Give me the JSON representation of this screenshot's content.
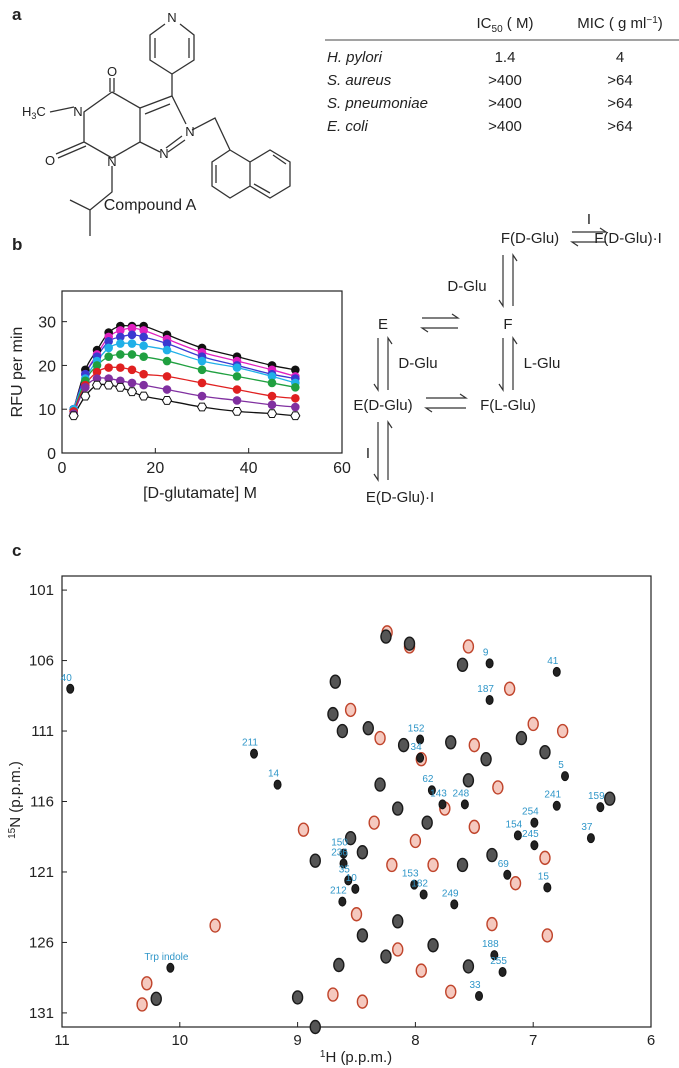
{
  "panel_labels": [
    "a",
    "b",
    "c"
  ],
  "compound": {
    "name": "Compound A",
    "atoms": [
      "N",
      "O",
      "N",
      "O",
      "N",
      "N",
      "N"
    ],
    "methyl": {
      "main": "H",
      "sub": "3",
      "rest": "C"
    }
  },
  "table": {
    "headers": [
      {
        "main": "IC",
        "sub": "50",
        "rest": " ( M)"
      },
      {
        "main": "MIC ( g ml",
        "sup": "−1",
        "rest": ")"
      }
    ],
    "rows": [
      [
        "H. pylori",
        "1.4",
        "4"
      ],
      [
        "S. aureus",
        ">400",
        ">64"
      ],
      [
        "S. pneumoniae",
        ">400",
        ">64"
      ],
      [
        "E. coli",
        ">400",
        ">64"
      ]
    ]
  },
  "kinetics": {
    "type": "scatter",
    "x_label": "[D-glutamate]   M",
    "y_label": "RFU per min",
    "x": [
      2.5,
      5,
      7.5,
      10,
      12.5,
      15,
      17.5,
      22.5,
      30,
      37.5,
      45,
      50
    ],
    "xlim": [
      0,
      60
    ],
    "xticks": [
      0,
      20,
      40,
      60
    ],
    "ylim": [
      0,
      37
    ],
    "yticks": [
      0,
      10,
      20,
      30
    ],
    "series": [
      {
        "color": "#111111",
        "values": [
          10,
          19,
          23.5,
          27.5,
          29,
          29,
          29,
          27,
          24,
          22,
          20,
          19
        ]
      },
      {
        "color": "#e020c0",
        "values": [
          10,
          18,
          22.5,
          26.5,
          28,
          28.5,
          28,
          26,
          23,
          21,
          19,
          17.5
        ]
      },
      {
        "color": "#3a3ad0",
        "values": [
          10,
          18,
          22,
          25.5,
          26.5,
          27,
          26.5,
          25,
          22,
          20,
          18,
          17
        ]
      },
      {
        "color": "#20b0e8",
        "values": [
          10,
          17,
          21,
          24,
          25,
          25,
          24.5,
          23.5,
          21,
          19.5,
          17.5,
          16
        ]
      },
      {
        "color": "#20a040",
        "values": [
          9.5,
          16.5,
          20,
          22,
          22.5,
          22.5,
          22,
          21,
          19,
          17.5,
          16,
          15
        ]
      },
      {
        "color": "#e02020",
        "values": [
          9.5,
          15.5,
          18.5,
          19.5,
          19.5,
          19,
          18,
          17.5,
          16,
          14.5,
          13,
          12.5
        ]
      },
      {
        "color": "#8030a0",
        "values": [
          9,
          15,
          17,
          17,
          16.5,
          16,
          15.5,
          14.5,
          13,
          12,
          11,
          10.5
        ]
      },
      {
        "color": "#ffffff",
        "line_color": "#111111",
        "marker": "hexagon",
        "values": [
          8.5,
          13,
          15.5,
          15.5,
          15,
          14,
          13,
          12,
          10.5,
          9.5,
          9,
          8.5
        ]
      }
    ]
  },
  "scheme": {
    "nodes": [
      "F(D-Glu)",
      "F(D-Glu)·I",
      "E",
      "F",
      "E(D-Glu)",
      "F(L-Glu)",
      "E(D-Glu)·I"
    ],
    "edge_labels": [
      "I",
      "D-Glu",
      "D-Glu",
      "L-Glu",
      "I"
    ]
  },
  "spectrum": {
    "type": "scatter",
    "x_label": {
      "sup": "1",
      "main": "H (p.p.m.)"
    },
    "y_label": {
      "sup": "15",
      "main": "N (p.p.m.)"
    },
    "xlim": [
      11,
      6
    ],
    "xticks": [
      11,
      10,
      9,
      8,
      7,
      6
    ],
    "ylim": [
      132,
      100
    ],
    "yticks": [
      101,
      106,
      111,
      116,
      121,
      126,
      131
    ],
    "labeled_peaks": {
      "labels": [
        "40",
        "211",
        "14",
        "9",
        "41",
        "187",
        "152",
        "34",
        "62",
        "143",
        "248",
        "5",
        "241",
        "159",
        "254",
        "37",
        "154",
        "245",
        "150",
        "236",
        "69",
        "35",
        "10",
        "212",
        "153",
        "182",
        "249",
        "15",
        "188",
        "255",
        "33",
        "Trp indole"
      ],
      "x": [
        10.93,
        9.37,
        9.17,
        7.37,
        6.8,
        7.37,
        7.96,
        7.96,
        7.86,
        7.77,
        7.58,
        6.73,
        6.8,
        6.43,
        6.99,
        6.51,
        7.13,
        6.99,
        8.61,
        8.61,
        7.22,
        8.57,
        8.51,
        8.62,
        8.01,
        7.93,
        7.67,
        6.88,
        7.33,
        7.26,
        7.46,
        10.08
      ],
      "y": [
        108.0,
        112.6,
        114.8,
        106.2,
        106.8,
        108.8,
        111.6,
        112.9,
        115.2,
        116.2,
        116.2,
        114.2,
        116.3,
        116.4,
        117.5,
        118.6,
        118.4,
        119.1,
        119.7,
        120.4,
        121.2,
        121.6,
        122.2,
        123.1,
        121.9,
        122.6,
        123.3,
        122.1,
        126.9,
        128.1,
        129.8,
        127.8
      ]
    },
    "black_peaks": {
      "color": "#1a1a1a",
      "x": [
        8.25,
        8.05,
        7.6,
        8.68,
        8.7,
        8.62,
        8.4,
        8.1,
        7.7,
        7.4,
        7.1,
        6.9,
        7.55,
        8.3,
        8.15,
        7.9,
        8.55,
        8.45,
        7.35,
        7.6,
        8.85,
        8.15,
        8.45,
        8.25,
        7.85,
        7.55,
        8.65,
        9.0,
        10.2,
        8.85,
        6.35
      ],
      "y": [
        104.3,
        104.8,
        106.3,
        107.5,
        109.8,
        111.0,
        110.8,
        112.0,
        111.8,
        113.0,
        111.5,
        112.5,
        114.5,
        114.8,
        116.5,
        117.5,
        118.6,
        119.6,
        119.8,
        120.5,
        120.2,
        124.5,
        125.5,
        127.0,
        126.2,
        127.7,
        127.6,
        129.9,
        130.0,
        132.0,
        115.8
      ]
    },
    "red_peaks": {
      "color": "#c0452c",
      "x": [
        8.24,
        8.05,
        7.55,
        7.2,
        8.55,
        8.3,
        7.95,
        7.5,
        7.0,
        6.75,
        7.3,
        7.75,
        8.0,
        8.35,
        8.2,
        7.85,
        7.5,
        7.15,
        6.9,
        8.95,
        9.7,
        8.5,
        8.15,
        7.95,
        7.35,
        6.88,
        10.32,
        10.28,
        8.7,
        8.45,
        7.7
      ],
      "y": [
        104.0,
        105.0,
        105.0,
        108.0,
        109.5,
        111.5,
        113.0,
        112.0,
        110.5,
        111.0,
        115.0,
        116.5,
        118.8,
        117.5,
        120.5,
        120.5,
        117.8,
        121.8,
        120.0,
        118.0,
        124.8,
        124.0,
        126.5,
        128.0,
        124.7,
        125.5,
        130.4,
        128.9,
        129.7,
        130.2,
        129.5
      ]
    }
  }
}
